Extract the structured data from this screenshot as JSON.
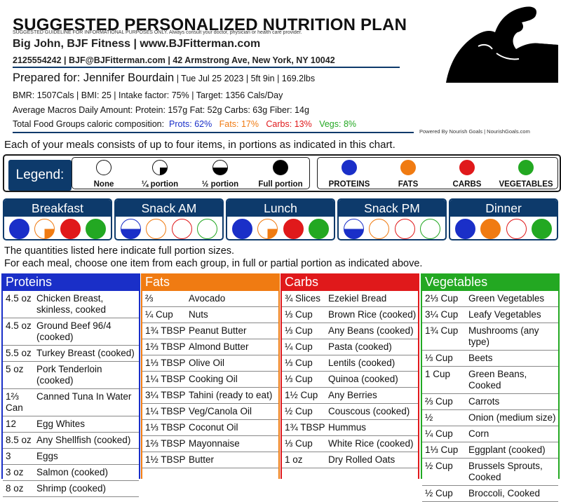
{
  "header": {
    "title": "SUGGESTED PERSONALIZED NUTRITION PLAN",
    "disclaimer": "SUGGESTED GUIDELINE FOR INFORMATIONAL PURPOSES ONLY. Always consult your doctor, physician or health care provider.",
    "business": "Big John, BJF Fitness | www.BJFitterman.com",
    "contact": "2125554242 | BJF@BJFitterman.com | 42 Armstrong Ave, New York, NY 10042"
  },
  "client": {
    "prepared_for": "Prepared for: Jennifer Bourdain",
    "details": " | Tue Jul 25 2023 | 5ft 9in | 169.2lbs",
    "stats": "BMR: 1507Cals | BMI: 25 | Intake factor: 75% | Target: 1356 Cals/Day",
    "macros": "Average Macros Daily Amount:   Protein: 157g   Fat: 52g   Carbs: 63g   Fiber: 14g",
    "groups_label": "Total Food Groups caloric composition:",
    "groups": [
      {
        "label": "Prots:",
        "value": "62%",
        "color": "#1a2fc8"
      },
      {
        "label": "Fats:",
        "value": "17%",
        "color": "#f07b12"
      },
      {
        "label": "Carbs:",
        "value": "13%",
        "color": "#e0191b"
      },
      {
        "label": "Vegs:",
        "value": "8%",
        "color": "#23a822"
      }
    ]
  },
  "powered_by": "Powered By Nourish Goals | NourishGoals.com",
  "intro": "Each of your meals consists of up to four items, in portions as indicated in this chart.",
  "legend": {
    "title": "Legend:",
    "portions": [
      "None",
      "¼ portion",
      "½ portion",
      "Full portion"
    ],
    "groups": [
      "PROTEINS",
      "FATS",
      "CARBS",
      "VEGETABLES"
    ]
  },
  "colors": {
    "navy": "#0d3a6b",
    "protein": "#1a2fc8",
    "fat": "#f07b12",
    "carb": "#e0191b",
    "veg": "#23a822"
  },
  "meals": [
    {
      "name": "Breakfast",
      "portions": [
        1,
        0.25,
        1,
        1
      ]
    },
    {
      "name": "Snack AM",
      "portions": [
        0.5,
        0,
        0,
        0
      ]
    },
    {
      "name": "Lunch",
      "portions": [
        1,
        0.25,
        1,
        1
      ]
    },
    {
      "name": "Snack PM",
      "portions": [
        0.5,
        0,
        0,
        0
      ]
    },
    {
      "name": "Dinner",
      "portions": [
        1,
        1,
        0,
        1
      ]
    }
  ],
  "notes": [
    "The quantities listed here indicate full portion sizes.",
    "For each meal, choose one item from each group, in full or partial portion as indicated above."
  ],
  "food_groups": [
    {
      "name": "Proteins",
      "items": [
        [
          "4.5 oz",
          "Chicken Breast, skinless, cooked"
        ],
        [
          "4.5 oz",
          "Ground Beef 96/4 (cooked)"
        ],
        [
          "5.5 oz",
          "Turkey Breast (cooked)"
        ],
        [
          "5 oz",
          "Pork Tenderloin (cooked)"
        ],
        [
          "1⅔ Can",
          "Canned Tuna In Water"
        ],
        [
          "12",
          "Egg Whites"
        ],
        [
          "8.5 oz",
          "Any Shellfish (cooked)"
        ],
        [
          "3",
          "Eggs"
        ],
        [
          "3 oz",
          "Salmon (cooked)"
        ],
        [
          "8 oz",
          "Shrimp (cooked)"
        ]
      ]
    },
    {
      "name": "Fats",
      "items": [
        [
          "⅔",
          "Avocado"
        ],
        [
          "¼ Cup",
          "Nuts"
        ],
        [
          "1¾ TBSP",
          "Peanut Butter"
        ],
        [
          "1⅔ TBSP",
          "Almond Butter"
        ],
        [
          "1⅓ TBSP",
          "Olive Oil"
        ],
        [
          "1¼ TBSP",
          "Cooking Oil"
        ],
        [
          "3¼ TBSP",
          "Tahini (ready to eat)"
        ],
        [
          "1¼ TBSP",
          "Veg/Canola Oil"
        ],
        [
          "1⅓ TBSP",
          "Coconut Oil"
        ],
        [
          "1⅔ TBSP",
          "Mayonnaise"
        ],
        [
          "1½ TBSP",
          "Butter"
        ]
      ]
    },
    {
      "name": "Carbs",
      "items": [
        [
          "¾ Slices",
          "Ezekiel Bread"
        ],
        [
          "⅓ Cup",
          "Brown Rice (cooked)"
        ],
        [
          "⅓ Cup",
          "Any Beans (cooked)"
        ],
        [
          "¼ Cup",
          "Pasta (cooked)"
        ],
        [
          "⅓ Cup",
          "Lentils (cooked)"
        ],
        [
          "⅓ Cup",
          "Quinoa (cooked)"
        ],
        [
          "1½ Cup",
          "Any Berries"
        ],
        [
          "½ Cup",
          "Couscous (cooked)"
        ],
        [
          "1¾ TBSP",
          "Hummus"
        ],
        [
          "⅓ Cup",
          "White Rice (cooked)"
        ],
        [
          "1 oz",
          "Dry Rolled Oats"
        ]
      ]
    },
    {
      "name": "Vegetables",
      "items": [
        [
          "2⅓ Cup",
          "Green Vegetables"
        ],
        [
          "3¼ Cup",
          "Leafy Vegetables"
        ],
        [
          "1¾ Cup",
          "Mushrooms (any type)"
        ],
        [
          "⅓ Cup",
          "Beets"
        ],
        [
          "1 Cup",
          "Green Beans, Cooked"
        ],
        [
          "⅔ Cup",
          "Carrots"
        ],
        [
          "½",
          "Onion (medium size)"
        ],
        [
          "¼ Cup",
          "Corn"
        ],
        [
          "1⅓ Cup",
          "Eggplant (cooked)"
        ],
        [
          "½ Cup",
          "Brussels Sprouts, Cooked"
        ],
        [
          "½ Cup",
          "Broccoli, Cooked"
        ]
      ]
    }
  ]
}
